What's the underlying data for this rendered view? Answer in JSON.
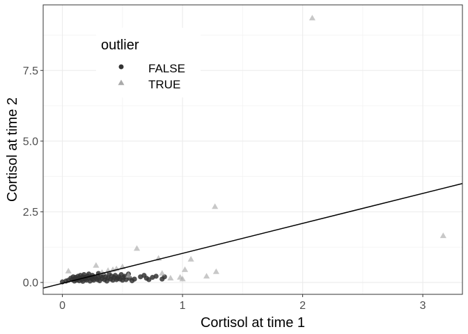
{
  "chart_data": {
    "type": "scatter",
    "xlabel": "Cortisol at time 1",
    "ylabel": "Cortisol at time 2",
    "xlim": [
      -0.16,
      3.33
    ],
    "ylim": [
      -0.42,
      9.82
    ],
    "x_ticks": [
      0,
      1,
      2,
      3
    ],
    "x_tick_labels": [
      "0",
      "1",
      "2",
      "3"
    ],
    "y_ticks": [
      0.0,
      2.5,
      5.0,
      7.5
    ],
    "y_tick_labels": [
      "0.0",
      "2.5",
      "5.0",
      "7.5"
    ],
    "grid": true,
    "legend": {
      "title": "outlier",
      "placement": "top-left (inside)",
      "entries": [
        "FALSE",
        "TRUE"
      ]
    },
    "colors": {
      "FALSE": "#333333",
      "TRUE": "#aaaaaa"
    },
    "reference_line": {
      "intercept": -0.03,
      "slope": 1.06
    },
    "series": [
      {
        "name": "FALSE",
        "shape": "circle",
        "x": [
          0.0,
          0.03,
          0.05,
          0.07,
          0.08,
          0.09,
          0.1,
          0.1,
          0.11,
          0.12,
          0.13,
          0.13,
          0.14,
          0.15,
          0.15,
          0.16,
          0.17,
          0.17,
          0.18,
          0.19,
          0.19,
          0.2,
          0.21,
          0.22,
          0.22,
          0.23,
          0.24,
          0.25,
          0.25,
          0.26,
          0.27,
          0.28,
          0.29,
          0.3,
          0.3,
          0.31,
          0.32,
          0.33,
          0.34,
          0.35,
          0.36,
          0.37,
          0.38,
          0.39,
          0.4,
          0.41,
          0.42,
          0.43,
          0.44,
          0.45,
          0.46,
          0.47,
          0.48,
          0.49,
          0.5,
          0.51,
          0.52,
          0.53,
          0.55,
          0.56,
          0.58,
          0.6,
          0.65,
          0.68,
          0.7,
          0.72,
          0.75,
          0.78,
          0.83,
          0.85
        ],
        "y": [
          0.02,
          0.05,
          0.08,
          0.15,
          0.1,
          0.2,
          0.12,
          0.05,
          0.18,
          0.08,
          0.22,
          0.14,
          0.06,
          0.25,
          0.16,
          0.1,
          0.2,
          0.04,
          0.28,
          0.12,
          0.18,
          0.08,
          0.22,
          0.15,
          0.3,
          0.05,
          0.18,
          0.12,
          0.25,
          0.08,
          0.2,
          0.15,
          0.1,
          0.32,
          0.18,
          0.06,
          0.22,
          0.14,
          0.28,
          0.1,
          0.2,
          0.05,
          0.16,
          0.3,
          0.12,
          0.22,
          0.08,
          0.18,
          0.25,
          0.1,
          0.15,
          0.2,
          0.12,
          0.28,
          0.08,
          0.18,
          0.22,
          0.1,
          0.3,
          0.15,
          0.06,
          0.12,
          0.2,
          0.25,
          0.15,
          0.1,
          0.18,
          0.22,
          0.12,
          0.2
        ]
      },
      {
        "name": "TRUE",
        "shape": "triangle",
        "x": [
          0.05,
          0.28,
          0.33,
          0.38,
          0.42,
          0.45,
          0.5,
          0.55,
          0.62,
          0.8,
          0.83,
          0.9,
          0.98,
          1.0,
          1.02,
          1.07,
          1.2,
          1.27,
          1.28,
          2.08,
          3.17
        ],
        "y": [
          0.4,
          0.6,
          0.35,
          0.42,
          0.45,
          0.48,
          0.55,
          0.25,
          1.2,
          0.85,
          0.32,
          0.15,
          0.18,
          0.12,
          0.45,
          0.82,
          0.22,
          2.68,
          0.38,
          9.35,
          1.65
        ]
      }
    ]
  }
}
